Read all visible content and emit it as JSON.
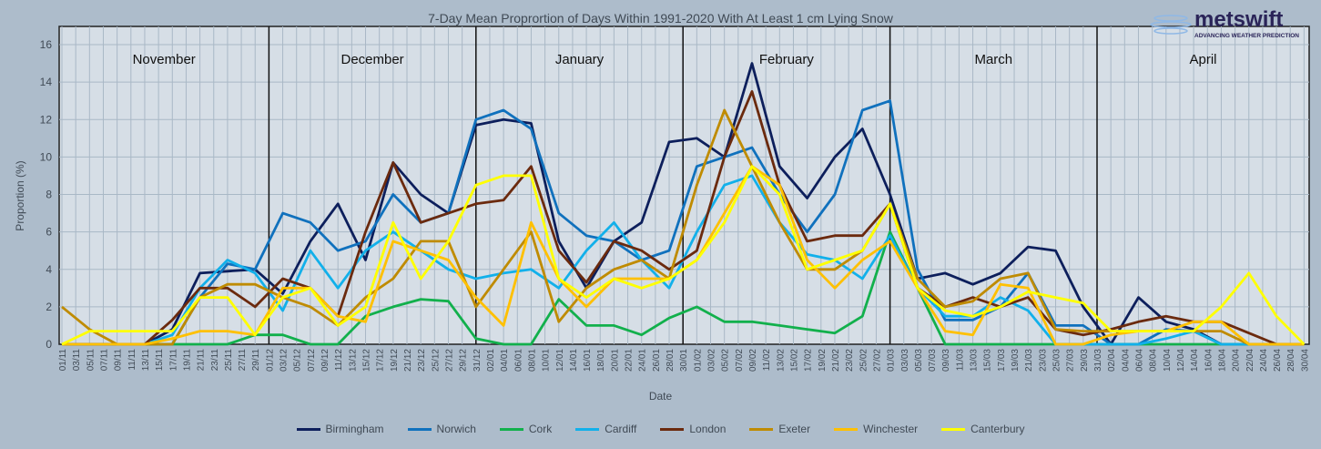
{
  "chart_data": {
    "type": "line",
    "title": "7-Day Mean Proprortion of Days Within 1991-2020 With At Least 1 cm Lying Snow",
    "xlabel": "Date",
    "ylabel": "Proportion (%)",
    "ylim": [
      0,
      16
    ],
    "yticks": [
      0,
      2,
      4,
      6,
      8,
      10,
      12,
      14,
      16
    ],
    "grid": true,
    "legend_position": "bottom",
    "month_labels": [
      "November",
      "December",
      "January",
      "February",
      "March",
      "April"
    ],
    "xtick_labels": [
      "01/11",
      "03/11",
      "05/11",
      "07/11",
      "09/11",
      "11/11",
      "13/11",
      "15/11",
      "17/11",
      "19/11",
      "21/11",
      "23/11",
      "25/11",
      "27/11",
      "29/11",
      "01/12",
      "03/12",
      "05/12",
      "07/12",
      "09/12",
      "11/12",
      "13/12",
      "15/12",
      "17/12",
      "19/12",
      "21/12",
      "23/12",
      "25/12",
      "27/12",
      "29/12",
      "31/12",
      "02/01",
      "04/01",
      "06/01",
      "08/01",
      "10/01",
      "12/01",
      "14/01",
      "16/01",
      "18/01",
      "20/01",
      "22/01",
      "24/01",
      "26/01",
      "28/01",
      "30/01",
      "01/02",
      "03/02",
      "05/02",
      "07/02",
      "09/02",
      "11/02",
      "13/02",
      "15/02",
      "17/02",
      "19/02",
      "21/02",
      "23/02",
      "25/02",
      "27/02",
      "01/03",
      "03/03",
      "05/03",
      "07/03",
      "09/03",
      "11/03",
      "13/03",
      "15/03",
      "17/03",
      "19/03",
      "21/03",
      "23/03",
      "25/03",
      "27/03",
      "29/03",
      "31/03",
      "02/04",
      "04/04",
      "06/04",
      "08/04",
      "10/04",
      "12/04",
      "14/04",
      "16/04",
      "18/04",
      "20/04",
      "22/04",
      "24/04",
      "26/04",
      "28/04",
      "30/04"
    ],
    "x": [
      "01/11",
      "05/11",
      "09/11",
      "13/11",
      "17/11",
      "21/11",
      "25/11",
      "29/11",
      "03/12",
      "07/12",
      "11/12",
      "15/12",
      "19/12",
      "23/12",
      "27/12",
      "31/12",
      "04/01",
      "08/01",
      "12/01",
      "16/01",
      "20/01",
      "24/01",
      "28/01",
      "01/02",
      "05/02",
      "09/02",
      "13/02",
      "17/02",
      "21/02",
      "25/02",
      "01/03",
      "05/03",
      "09/03",
      "13/03",
      "17/03",
      "21/03",
      "25/03",
      "29/03",
      "02/04",
      "06/04",
      "10/04",
      "14/04",
      "18/04",
      "22/04",
      "26/04",
      "30/04"
    ],
    "series": [
      {
        "name": "Birmingham",
        "color": "#0d1f5c",
        "values": [
          0,
          0,
          0,
          0,
          0.8,
          3.8,
          3.9,
          4,
          2.7,
          5.5,
          7.5,
          4.5,
          9.7,
          8,
          7,
          11.7,
          12,
          11.8,
          5.5,
          3,
          5.5,
          6.5,
          10.8,
          11,
          10,
          15,
          9.5,
          7.8,
          10,
          11.5,
          8,
          3.5,
          3.8,
          3.2,
          3.8,
          5.2,
          5,
          2,
          0,
          2.5,
          1.2,
          0.8,
          0,
          0,
          0,
          0
        ]
      },
      {
        "name": "Norwich",
        "color": "#1071bd",
        "values": [
          0,
          0,
          0,
          0,
          0,
          2.5,
          4.3,
          4,
          7,
          6.5,
          5,
          5.5,
          8,
          6.5,
          7,
          12,
          12.5,
          11.5,
          7,
          5.8,
          5.5,
          4.5,
          5,
          9.5,
          10,
          10.5,
          8,
          6,
          8,
          12.5,
          13,
          4,
          1.3,
          1.3,
          2,
          3.8,
          1,
          1,
          0,
          0,
          0.8,
          0.7,
          0,
          0,
          0,
          0
        ]
      },
      {
        "name": "Cork",
        "color": "#12b04c",
        "values": [
          0,
          0,
          0,
          0,
          0,
          0,
          0,
          0.5,
          0.5,
          0,
          0,
          1.5,
          2,
          2.4,
          2.3,
          0.3,
          0,
          0,
          2.4,
          1,
          1,
          0.5,
          1.4,
          2,
          1.2,
          1.2,
          1,
          0.8,
          0.6,
          1.5,
          6,
          3,
          0,
          0,
          0,
          0,
          0,
          0,
          0,
          0,
          0,
          0,
          0,
          0,
          0,
          0
        ]
      },
      {
        "name": "Cardiff",
        "color": "#12b0ea",
        "values": [
          0,
          0,
          0,
          0,
          0.5,
          3,
          4.5,
          3.8,
          1.8,
          5,
          3,
          5,
          6,
          5,
          4,
          3.5,
          3.8,
          4,
          3,
          5,
          6.5,
          4.5,
          3,
          6,
          8.5,
          9,
          6.5,
          4.8,
          4.5,
          3.5,
          5.8,
          3,
          1.5,
          1.5,
          2.5,
          1.8,
          0,
          0,
          0,
          0,
          0.3,
          0.7,
          0,
          0,
          0,
          0
        ]
      },
      {
        "name": "London",
        "color": "#6b2a0e",
        "values": [
          0,
          0,
          0,
          0,
          1.3,
          3,
          3,
          2,
          3.5,
          3,
          1.5,
          6,
          9.7,
          6.5,
          7,
          7.5,
          7.7,
          9.5,
          5,
          3.3,
          5.5,
          5,
          4,
          5,
          10,
          13.5,
          8.5,
          5.5,
          5.8,
          5.8,
          7.5,
          3,
          2,
          2.5,
          2,
          2.5,
          0.8,
          0.5,
          0.8,
          1.2,
          1.5,
          1.2,
          1.2,
          0.6,
          0,
          0
        ]
      },
      {
        "name": "Exeter",
        "color": "#bf8b00",
        "values": [
          2,
          0.8,
          0,
          0,
          0,
          2.5,
          3.2,
          3.2,
          2.5,
          2,
          1,
          2.5,
          3.5,
          5.5,
          5.5,
          2,
          4,
          6,
          1.2,
          3,
          4,
          4.5,
          3.5,
          8.5,
          12.5,
          9.5,
          6.5,
          4,
          4,
          5,
          7.5,
          3.5,
          2,
          2.3,
          3.5,
          3.8,
          0.8,
          0.7,
          0.7,
          0.7,
          0.7,
          0.7,
          0.7,
          0,
          0,
          0
        ]
      },
      {
        "name": "Winchester",
        "color": "#ffc000",
        "values": [
          0,
          0,
          0,
          0,
          0.3,
          0.7,
          0.7,
          0.5,
          3,
          3,
          1.5,
          1.2,
          5.5,
          5,
          4.5,
          2.5,
          1,
          6.5,
          3.5,
          2,
          3.5,
          3.5,
          3.5,
          4.5,
          7,
          9.5,
          8.5,
          4.5,
          3,
          4.5,
          5.5,
          3,
          0.7,
          0.5,
          3.2,
          3,
          0,
          0,
          0.5,
          0.7,
          0.7,
          1.2,
          1.2,
          0,
          0,
          0
        ]
      },
      {
        "name": "Canterbury",
        "color": "#ffff00",
        "values": [
          0,
          0.7,
          0.7,
          0.7,
          0.7,
          2.5,
          2.5,
          0.5,
          2.5,
          3,
          1,
          2,
          6.5,
          3.5,
          5.5,
          8.5,
          9,
          9,
          3.5,
          2.5,
          3.5,
          3,
          3.5,
          4.5,
          6.5,
          9.5,
          8,
          4,
          4.5,
          5,
          7.5,
          3,
          1.8,
          1.5,
          2,
          2.8,
          2.5,
          2.2,
          0.7,
          0.7,
          0.7,
          0.7,
          2,
          3.8,
          1.5,
          0
        ]
      }
    ]
  },
  "logo": {
    "name": "metswift",
    "tagline": "ADVANCING WEATHER PREDICTION"
  }
}
